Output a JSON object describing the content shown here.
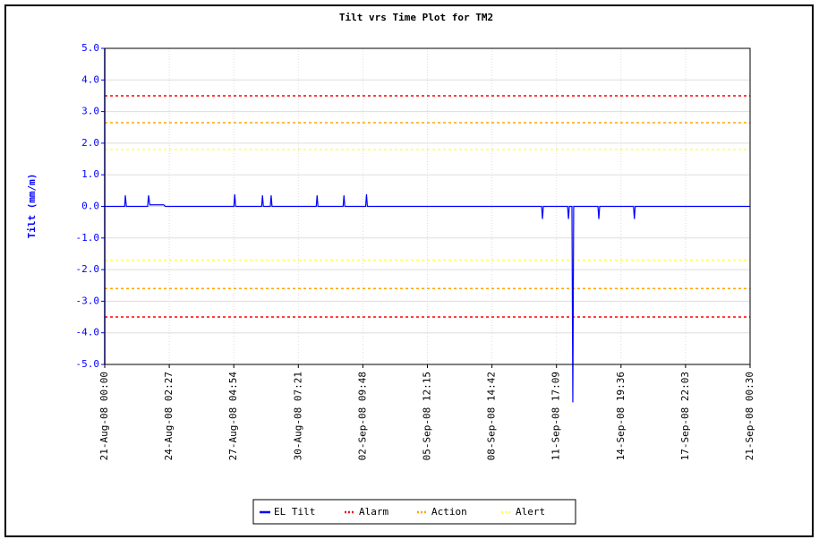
{
  "chart_data": {
    "type": "line",
    "title": "Tilt vrs Time Plot for TM2",
    "y_label": "Tilt (mm/m)",
    "ylim": [
      -5,
      5
    ],
    "yticks": [
      {
        "value": 5,
        "label": "5.0"
      },
      {
        "value": 4,
        "label": "4.0"
      },
      {
        "value": 3,
        "label": "3.0"
      },
      {
        "value": 2,
        "label": "2.0"
      },
      {
        "value": 1,
        "label": "1.0"
      },
      {
        "value": 0,
        "label": "0.0"
      },
      {
        "value": -1,
        "label": "-1.0"
      },
      {
        "value": -2,
        "label": "-2.0"
      },
      {
        "value": -3,
        "label": "-3.0"
      },
      {
        "value": -4,
        "label": "-4.0"
      },
      {
        "value": -5,
        "label": "-5.0"
      }
    ],
    "xlim": [
      "2008-08-21 00:00",
      "2008-09-21 00:30"
    ],
    "xticks": [
      {
        "value": "2008-08-21 00:00",
        "label": "21-Aug-08 00:00"
      },
      {
        "value": "2008-08-24 02:27",
        "label": "24-Aug-08 02:27"
      },
      {
        "value": "2008-08-27 04:54",
        "label": "27-Aug-08 04:54"
      },
      {
        "value": "2008-08-30 07:21",
        "label": "30-Aug-08 07:21"
      },
      {
        "value": "2008-09-02 09:48",
        "label": "02-Sep-08 09:48"
      },
      {
        "value": "2008-09-05 12:15",
        "label": "05-Sep-08 12:15"
      },
      {
        "value": "2008-09-08 14:42",
        "label": "08-Sep-08 14:42"
      },
      {
        "value": "2008-09-11 17:09",
        "label": "11-Sep-08 17:09"
      },
      {
        "value": "2008-09-14 19:36",
        "label": "14-Sep-08 19:36"
      },
      {
        "value": "2008-09-17 22:03",
        "label": "17-Sep-08 22:03"
      },
      {
        "value": "2008-09-21 00:30",
        "label": "21-Sep-08 00:30"
      }
    ],
    "grid": true,
    "x": [
      "2008-08-21 00:00",
      "2008-08-21 23:00",
      "2008-08-21 23:45",
      "2008-08-22 01:00",
      "2008-08-23 01:30",
      "2008-08-23 02:36",
      "2008-08-23 04:00",
      "2008-08-23 20:00",
      "2008-08-23 22:00",
      "2008-08-27 05:00",
      "2008-08-27 06:00",
      "2008-08-27 07:00",
      "2008-08-28 13:00",
      "2008-08-28 14:00",
      "2008-08-28 15:00",
      "2008-08-28 23:00",
      "2008-08-29 00:00",
      "2008-08-29 01:00",
      "2008-08-31 04:00",
      "2008-08-31 05:00",
      "2008-08-31 06:00",
      "2008-09-01 11:00",
      "2008-09-01 12:00",
      "2008-09-01 13:00",
      "2008-09-02 13:00",
      "2008-09-02 14:00",
      "2008-09-02 15:00",
      "2008-09-11 00:00",
      "2008-09-11 01:00",
      "2008-09-11 02:00",
      "2008-09-12 06:00",
      "2008-09-12 07:00",
      "2008-09-12 08:00",
      "2008-09-12 11:00",
      "2008-09-12 12:00",
      "2008-09-12 13:00",
      "2008-09-13 17:00",
      "2008-09-13 18:00",
      "2008-09-13 19:00",
      "2008-09-15 10:00",
      "2008-09-15 11:00",
      "2008-09-15 12:00",
      "2008-09-21 00:30"
    ],
    "series": [
      {
        "name": "EL Tilt",
        "color": "#0000ff",
        "values": [
          0,
          0,
          0.35,
          0,
          0,
          0.35,
          0.05,
          0.05,
          0,
          0,
          0.38,
          0,
          0,
          0.35,
          0,
          0,
          0.35,
          0,
          0,
          0.35,
          0,
          0,
          0.35,
          0,
          0,
          0.38,
          0,
          0,
          -0.4,
          0,
          0,
          -0.4,
          0,
          0,
          -6.2,
          0,
          0,
          -0.4,
          0,
          0,
          -0.4,
          0,
          0
        ]
      }
    ],
    "reference_lines": [
      {
        "name": "Alarm",
        "color": "#ff0000",
        "values": [
          3.5,
          -3.5
        ]
      },
      {
        "name": "Action",
        "color": "#ffa500",
        "values": [
          2.65,
          -2.6
        ]
      },
      {
        "name": "Alert",
        "color": "#ffff55",
        "values": [
          1.8,
          -1.7
        ]
      }
    ]
  }
}
